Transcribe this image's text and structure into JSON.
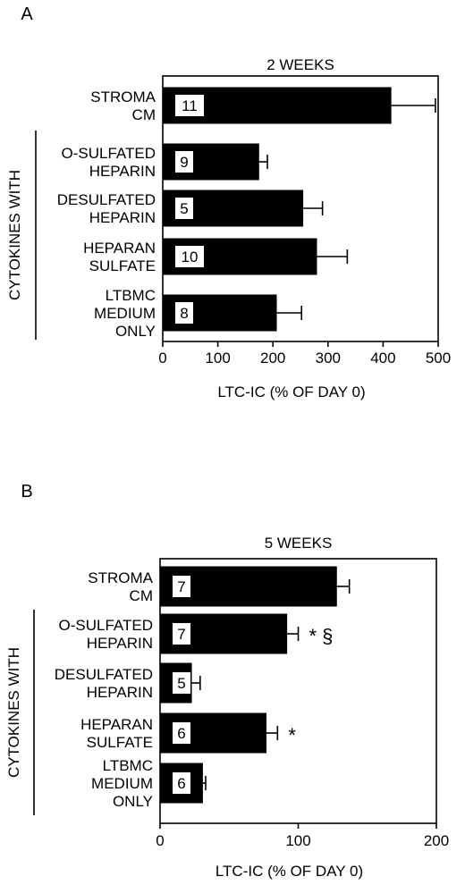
{
  "chart_data": [
    {
      "type": "bar",
      "orientation": "horizontal",
      "panel_label": "A",
      "title": "2 WEEKS",
      "xlabel": "LTC-IC (% OF DAY 0)",
      "group_label": "CYTOKINES WITH",
      "xlim": [
        0,
        500
      ],
      "xticks": [
        0,
        100,
        200,
        300,
        400,
        500
      ],
      "categories": [
        [
          "STROMA",
          "CM"
        ],
        [
          "O-SULFATED",
          "HEPARIN"
        ],
        [
          "DESULFATED",
          "HEPARIN"
        ],
        [
          "HEPARAN",
          "SULFATE"
        ],
        [
          "LTBMC",
          "MEDIUM",
          "ONLY"
        ]
      ],
      "values": [
        415,
        175,
        255,
        280,
        207
      ],
      "errors": [
        80,
        15,
        35,
        55,
        45
      ],
      "n_labels": [
        "11",
        "9",
        "5",
        "10",
        "8"
      ],
      "annotations": [
        "",
        "",
        "",
        "",
        ""
      ],
      "bar_color": "#000000"
    },
    {
      "type": "bar",
      "orientation": "horizontal",
      "panel_label": "B",
      "title": "5 WEEKS",
      "xlabel": "LTC-IC (% OF DAY 0)",
      "group_label": "CYTOKINES WITH",
      "xlim": [
        0,
        200
      ],
      "xticks": [
        0,
        100,
        200
      ],
      "categories": [
        [
          "STROMA",
          "CM"
        ],
        [
          "O-SULFATED",
          "HEPARIN"
        ],
        [
          "DESULFATED",
          "HEPARIN"
        ],
        [
          "HEPARAN",
          "SULFATE"
        ],
        [
          "LTBMC",
          "MEDIUM",
          "ONLY"
        ]
      ],
      "values": [
        128,
        92,
        23,
        77,
        31
      ],
      "errors": [
        9,
        8,
        6,
        8,
        2
      ],
      "n_labels": [
        "7",
        "7",
        "5",
        "6",
        "6"
      ],
      "annotations": [
        "",
        "*      §",
        "",
        "*",
        ""
      ],
      "bar_color": "#000000"
    }
  ]
}
